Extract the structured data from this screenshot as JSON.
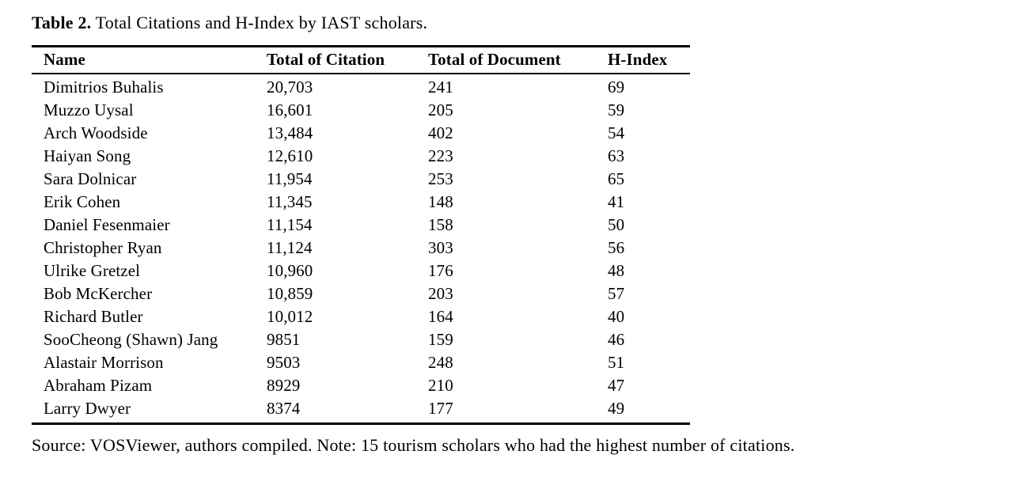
{
  "page": {
    "title_prefix": "Table 2.",
    "title_text": " Total Citations and H-Index by IAST scholars.",
    "footer": "Source: VOSViewer, authors compiled. Note: 15 tourism scholars who had the highest number of citations."
  },
  "chart_data": {
    "type": "table",
    "title": "Table 2. Total Citations and H-Index by IAST scholars.",
    "columns": [
      "Name",
      "Total of Citation",
      "Total of Document",
      "H-Index"
    ],
    "rows": [
      {
        "name": "Dimitrios Buhalis",
        "total_citation": "20,703",
        "total_document": "241",
        "h_index": "69"
      },
      {
        "name": "Muzzo Uysal",
        "total_citation": "16,601",
        "total_document": "205",
        "h_index": "59"
      },
      {
        "name": "Arch Woodside",
        "total_citation": "13,484",
        "total_document": "402",
        "h_index": "54"
      },
      {
        "name": "Haiyan Song",
        "total_citation": "12,610",
        "total_document": "223",
        "h_index": "63"
      },
      {
        "name": "Sara Dolnicar",
        "total_citation": "11,954",
        "total_document": "253",
        "h_index": "65"
      },
      {
        "name": "Erik Cohen",
        "total_citation": "11,345",
        "total_document": "148",
        "h_index": "41"
      },
      {
        "name": "Daniel Fesenmaier",
        "total_citation": "11,154",
        "total_document": "158",
        "h_index": "50"
      },
      {
        "name": "Christopher Ryan",
        "total_citation": "11,124",
        "total_document": "303",
        "h_index": "56"
      },
      {
        "name": "Ulrike Gretzel",
        "total_citation": "10,960",
        "total_document": "176",
        "h_index": "48"
      },
      {
        "name": "Bob McKercher",
        "total_citation": "10,859",
        "total_document": "203",
        "h_index": "57"
      },
      {
        "name": "Richard Butler",
        "total_citation": "10,012",
        "total_document": "164",
        "h_index": "40"
      },
      {
        "name": "SooCheong (Shawn) Jang",
        "total_citation": "9851",
        "total_document": "159",
        "h_index": "46"
      },
      {
        "name": "Alastair Morrison",
        "total_citation": "9503",
        "total_document": "248",
        "h_index": "51"
      },
      {
        "name": "Abraham Pizam",
        "total_citation": "8929",
        "total_document": "210",
        "h_index": "47"
      },
      {
        "name": "Larry Dwyer",
        "total_citation": "8374",
        "total_document": "177",
        "h_index": "49"
      }
    ]
  }
}
